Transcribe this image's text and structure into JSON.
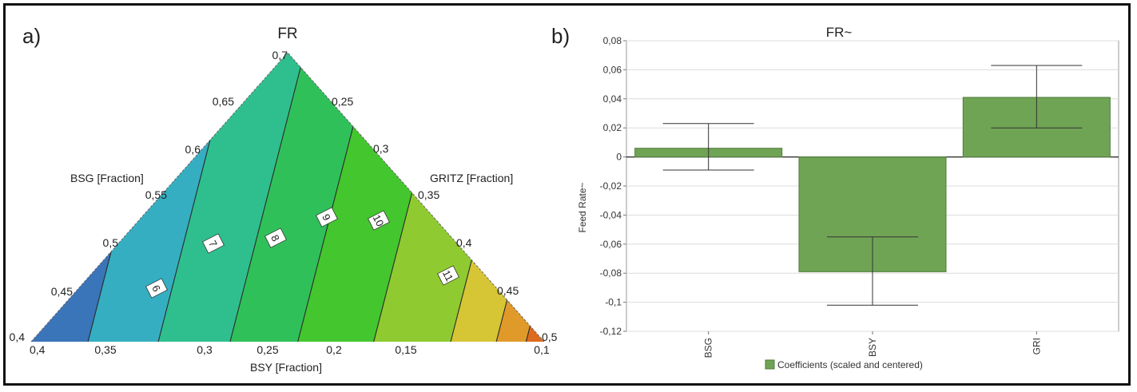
{
  "panel_a": {
    "letter": "a)",
    "title": "FR",
    "left_axis_label": "BSG [Fraction]",
    "right_axis_label": "GRITZ [Fraction]",
    "bottom_axis_label": "BSY [Fraction]",
    "left_ticks": [
      "0,7",
      "0,65",
      "0,6",
      "0,55",
      "0,5",
      "0,45",
      "0,4"
    ],
    "right_ticks": [
      "0,25",
      "0,3",
      "0,35",
      "0,4",
      "0,45",
      "0,5"
    ],
    "bottom_ticks": [
      "0,4",
      "0,35",
      "0,3",
      "0,25",
      "0,2",
      "0,15",
      "0,1"
    ],
    "contour_labels": [
      "6",
      "7",
      "8",
      "9",
      "10",
      "11"
    ],
    "colors": [
      "#3a74b9",
      "#35aec2",
      "#2fbf8e",
      "#30c05a",
      "#44c62e",
      "#8fcb30",
      "#d6c534",
      "#e09a2a",
      "#dc6b1e",
      "#e02418"
    ]
  },
  "panel_b": {
    "letter": "b)",
    "title": "FR~",
    "legend_label": "Coefficients (scaled and centered)",
    "bar_color": "#70a455",
    "bar_border": "#4e7a3a"
  },
  "chart_data": [
    {
      "type": "heatmap",
      "title": "FR",
      "subtype": "ternary contour",
      "axes": {
        "BSG [Fraction]": [
          0.4,
          0.7
        ],
        "BSY [Fraction]": [
          0.1,
          0.4
        ],
        "GRITZ [Fraction]": [
          0.2,
          0.5
        ]
      },
      "contour_levels": [
        6,
        7,
        8,
        9,
        10,
        11
      ]
    },
    {
      "type": "bar",
      "title": "FR~",
      "ylabel": "Feed Rate~",
      "categories": [
        "BSG",
        "BSY",
        "GRI"
      ],
      "series": [
        {
          "name": "Coefficients (scaled and centered)",
          "values": [
            0.006,
            -0.079,
            0.041
          ]
        }
      ],
      "error_bars": [
        [
          -0.009,
          0.023
        ],
        [
          -0.102,
          -0.055
        ],
        [
          0.02,
          0.063
        ]
      ],
      "ylim": [
        -0.12,
        0.08
      ],
      "yticks": [
        "0,08",
        "0,06",
        "0,04",
        "0,02",
        "0",
        "-0,02",
        "-0,04",
        "-0,06",
        "-0,08",
        "-0,1",
        "-0,12"
      ],
      "grid": true,
      "legend": "bottom"
    }
  ]
}
